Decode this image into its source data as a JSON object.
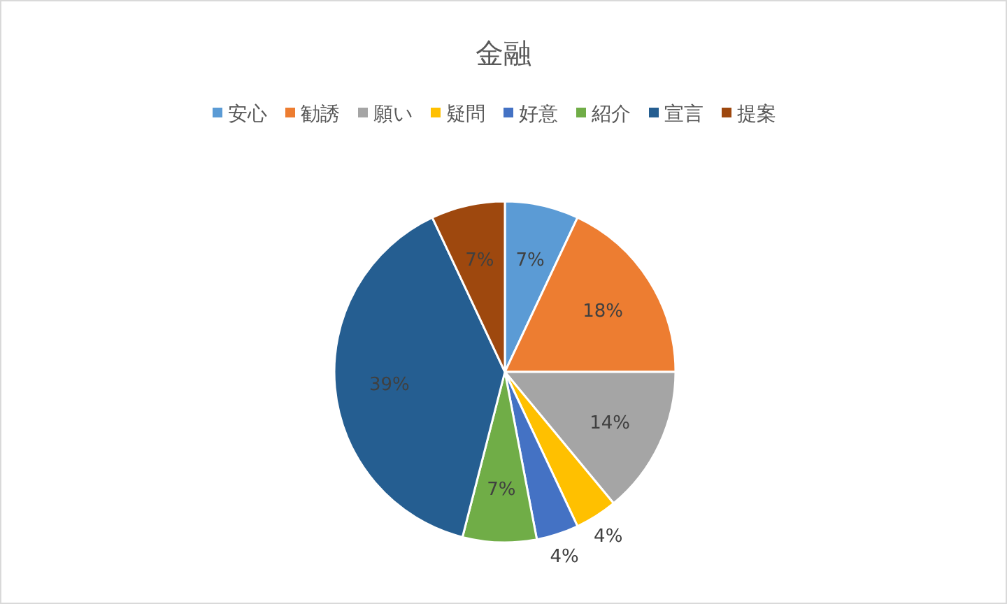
{
  "chart_data": {
    "type": "pie",
    "title": "金融",
    "categories": [
      "安心",
      "勧誘",
      "願い",
      "疑問",
      "好意",
      "紹介",
      "宣言",
      "提案"
    ],
    "values": [
      7,
      18,
      14,
      4,
      4,
      7,
      39,
      7
    ],
    "colors": [
      "#5b9bd5",
      "#ed7d31",
      "#a5a5a5",
      "#ffc000",
      "#4472c4",
      "#70ad47",
      "#255e91",
      "#9e480e"
    ],
    "value_labels": [
      "7%",
      "18%",
      "14%",
      "4%",
      "4%",
      "7%",
      "39%",
      "7%"
    ],
    "legend": "top"
  }
}
